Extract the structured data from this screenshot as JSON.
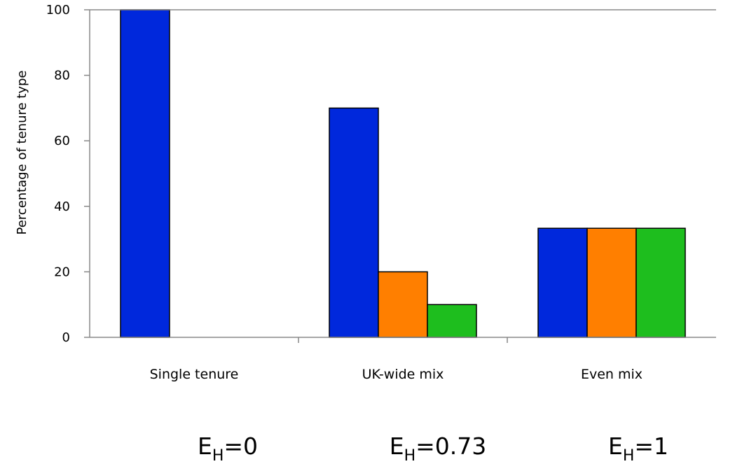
{
  "chart_data": {
    "type": "bar",
    "title": "",
    "xlabel": "",
    "ylabel": "Percentage of tenure type",
    "ylim": [
      0,
      100
    ],
    "yticks": [
      0,
      20,
      40,
      60,
      80,
      100
    ],
    "grid": false,
    "categories": [
      "Single tenure",
      "UK-wide mix",
      "Even mix"
    ],
    "series": [
      {
        "color": "#0028DC",
        "values": [
          100,
          70,
          33.3
        ]
      },
      {
        "color": "#FF7F00",
        "values": [
          0,
          20,
          33.3
        ]
      },
      {
        "color": "#1EBE1E",
        "values": [
          0,
          10,
          33.3
        ]
      }
    ],
    "annotations": [
      {
        "symbol": "E",
        "subscript": "H",
        "text": "=0"
      },
      {
        "symbol": "E",
        "subscript": "H",
        "text": "=0.73"
      },
      {
        "symbol": "E",
        "subscript": "H",
        "text": "=1"
      }
    ]
  }
}
